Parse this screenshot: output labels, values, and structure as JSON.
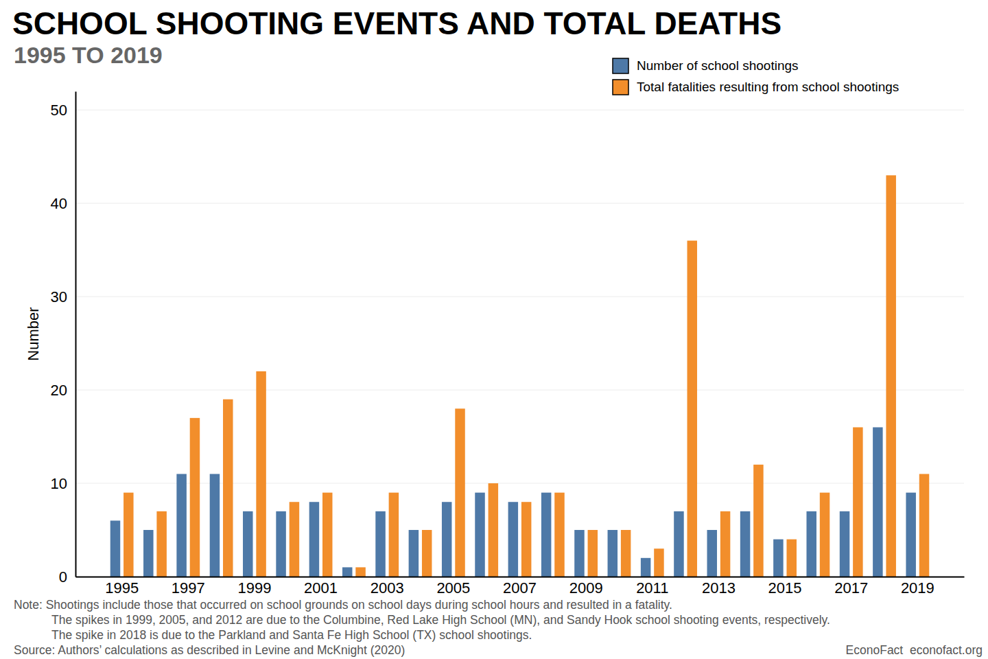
{
  "chart_data": {
    "type": "bar",
    "title": "SCHOOL SHOOTING EVENTS AND TOTAL DEATHS",
    "subtitle": "1995 TO 2019",
    "y_label": "Number",
    "categories": [
      "1995",
      null,
      "1997",
      null,
      "1999",
      null,
      "2001",
      null,
      "2003",
      null,
      "2005",
      null,
      "2007",
      null,
      "2009",
      null,
      "2011",
      null,
      "2013",
      null,
      "2015",
      null,
      "2017",
      null,
      "2019"
    ],
    "series": [
      {
        "name": "Number of school shootings",
        "color": "#4e79a7",
        "values": [
          6,
          5,
          11,
          11,
          7,
          7,
          8,
          1,
          7,
          5,
          8,
          9,
          8,
          9,
          5,
          5,
          2,
          7,
          5,
          7,
          4,
          7,
          7,
          16,
          9
        ]
      },
      {
        "name": "Total fatalities resulting from school shootings",
        "color": "#f28e2b",
        "values": [
          9,
          7,
          17,
          19,
          22,
          8,
          9,
          1,
          9,
          5,
          18,
          10,
          8,
          9,
          5,
          5,
          3,
          36,
          7,
          12,
          4,
          9,
          16,
          43,
          11
        ]
      }
    ],
    "ylim": [
      0,
      52
    ],
    "yticks": [
      0,
      10,
      20,
      30,
      40,
      50
    ],
    "grid": true,
    "legend": "top-right",
    "notes": [
      "Note: Shootings include those that occurred on school grounds on school days during school hours and resulted in a fatality.",
      "The spikes in 1999, 2005, and 2012 are due to the Columbine, Red Lake High School (MN), and Sandy Hook school shooting events, respectively.",
      "The spike in 2018 is due to the Parkland and Santa Fe High School (TX) school shootings."
    ],
    "source": "Source: Authors’ calculations as described in Levine and McKnight (2020)",
    "credit": "EconoFact  econofact.org"
  }
}
